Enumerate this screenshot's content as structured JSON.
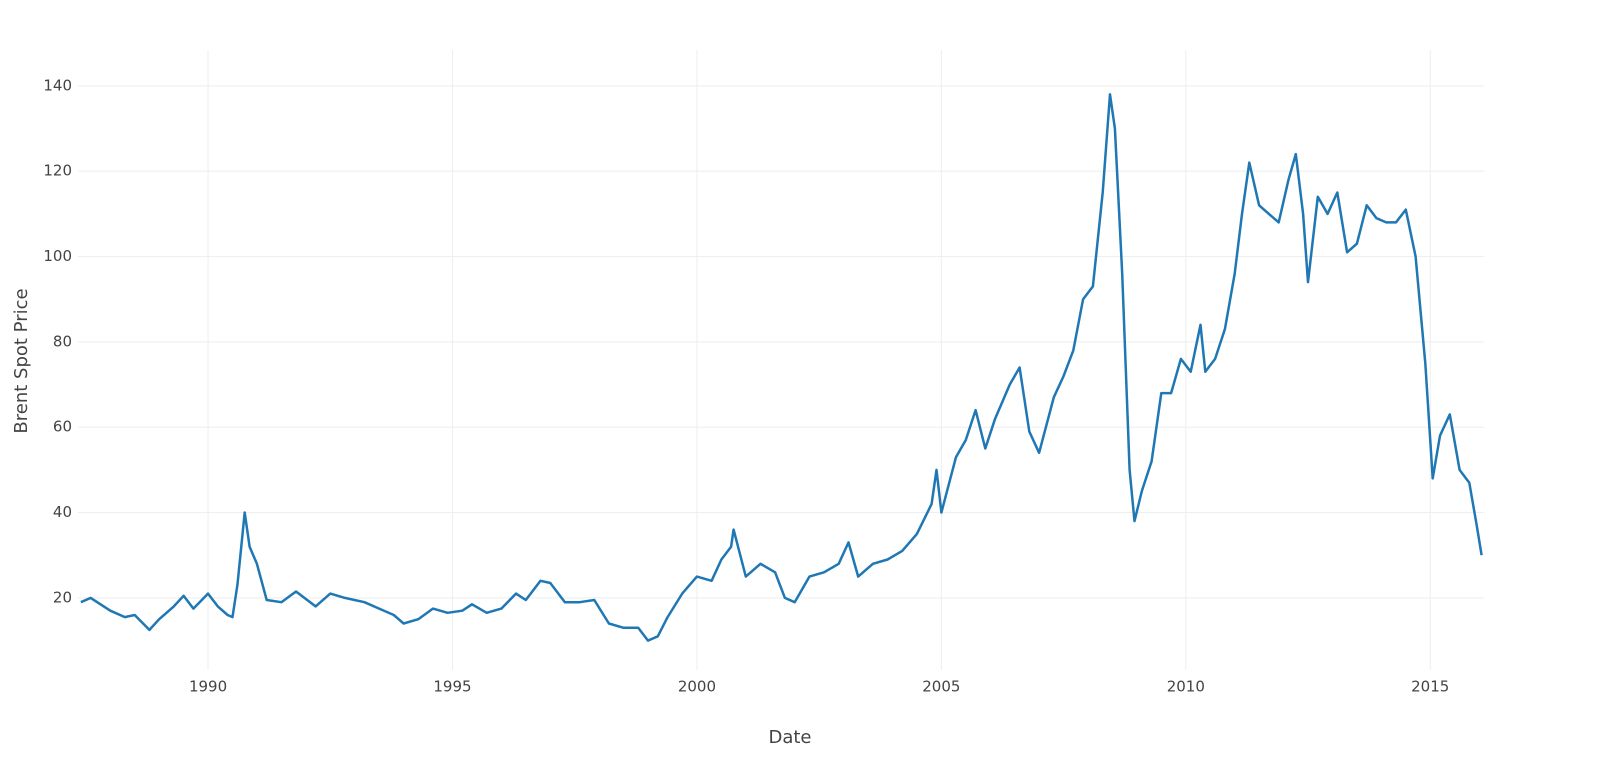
{
  "chart_data": {
    "type": "line",
    "xlabel": "Date",
    "ylabel": "Brent Spot Price",
    "x": [
      1987.4,
      1987.6,
      1987.8,
      1988.0,
      1988.3,
      1988.5,
      1988.8,
      1989.0,
      1989.3,
      1989.5,
      1989.7,
      1990.0,
      1990.2,
      1990.4,
      1990.5,
      1990.6,
      1990.75,
      1990.85,
      1991.0,
      1991.2,
      1991.5,
      1991.8,
      1992.2,
      1992.5,
      1992.8,
      1993.2,
      1993.5,
      1993.8,
      1994.0,
      1994.3,
      1994.6,
      1994.9,
      1995.2,
      1995.4,
      1995.7,
      1996.0,
      1996.3,
      1996.5,
      1996.8,
      1997.0,
      1997.3,
      1997.6,
      1997.9,
      1998.2,
      1998.5,
      1998.8,
      1999.0,
      1999.2,
      1999.4,
      1999.7,
      2000.0,
      2000.3,
      2000.5,
      2000.7,
      2000.75,
      2001.0,
      2001.3,
      2001.6,
      2001.8,
      2002.0,
      2002.3,
      2002.6,
      2002.9,
      2003.1,
      2003.3,
      2003.6,
      2003.9,
      2004.2,
      2004.5,
      2004.8,
      2004.9,
      2005.0,
      2005.3,
      2005.5,
      2005.7,
      2005.9,
      2006.1,
      2006.4,
      2006.6,
      2006.8,
      2007.0,
      2007.3,
      2007.5,
      2007.7,
      2007.9,
      2008.1,
      2008.3,
      2008.45,
      2008.55,
      2008.7,
      2008.85,
      2008.95,
      2009.1,
      2009.3,
      2009.5,
      2009.7,
      2009.9,
      2010.1,
      2010.3,
      2010.4,
      2010.6,
      2010.8,
      2011.0,
      2011.15,
      2011.3,
      2011.5,
      2011.7,
      2011.9,
      2012.1,
      2012.25,
      2012.4,
      2012.5,
      2012.7,
      2012.9,
      2013.1,
      2013.3,
      2013.5,
      2013.7,
      2013.9,
      2014.1,
      2014.3,
      2014.5,
      2014.7,
      2014.9,
      2015.05,
      2015.2,
      2015.4,
      2015.6,
      2015.8,
      2015.95,
      2016.05
    ],
    "series": [
      {
        "name": "Brent Spot Price",
        "color": "#1f77b4",
        "values": [
          19,
          20,
          18.5,
          17,
          15.5,
          16,
          12.5,
          15,
          18,
          20.5,
          17.5,
          21,
          18,
          16,
          15.5,
          23,
          40,
          32,
          28,
          19.5,
          19,
          21.5,
          18,
          21,
          20,
          19,
          17.5,
          16,
          14,
          15,
          17.5,
          16.5,
          17,
          18.5,
          16.5,
          17.5,
          21,
          19.5,
          24,
          23.5,
          19,
          19,
          19.5,
          14,
          13,
          13,
          10,
          11,
          15.5,
          21,
          25,
          24,
          29,
          32,
          36,
          25,
          28,
          26,
          20,
          19,
          25,
          26,
          28,
          33,
          25,
          28,
          29,
          31,
          35,
          42,
          50,
          40,
          53,
          57,
          64,
          55,
          62,
          70,
          74,
          59,
          54,
          67,
          72,
          78,
          90,
          93,
          115,
          138,
          130,
          96,
          50,
          38,
          45,
          52,
          68,
          68,
          76,
          73,
          84,
          73,
          76,
          83,
          96,
          110,
          122,
          112,
          110,
          108,
          118,
          124,
          110,
          94,
          114,
          110,
          115,
          101,
          103,
          112,
          109,
          108,
          108,
          111,
          100,
          75,
          48,
          58,
          63,
          50,
          47,
          37,
          30
        ]
      }
    ],
    "xlim": [
      1987.34,
      2016.1
    ],
    "xticks": [
      1990,
      1995,
      2000,
      2005,
      2010,
      2015
    ],
    "ylim": [
      3.1,
      148.4
    ],
    "yticks": [
      20,
      40,
      60,
      80,
      100,
      120,
      140
    ],
    "grid": true
  }
}
